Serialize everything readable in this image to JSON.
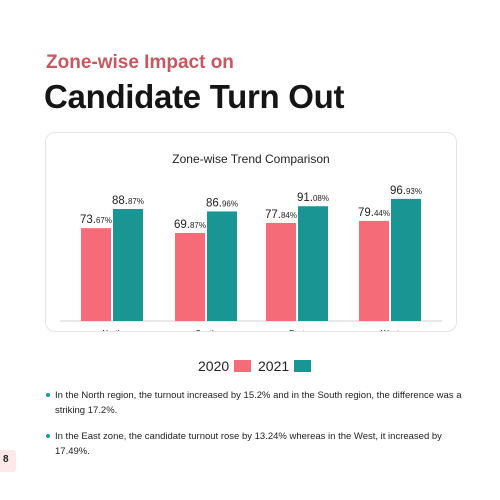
{
  "header": {
    "subtitle": "Zone-wise Impact on",
    "title": "Candidate Turn Out"
  },
  "colors": {
    "series_2020": "#f56b77",
    "series_2021": "#199693",
    "subtitle": "#c9575f",
    "page_badge": "#fde8ea"
  },
  "chart_data": {
    "type": "bar",
    "title": "Zone-wise Trend Comparison",
    "categories": [
      "North",
      "South",
      "East",
      "West"
    ],
    "series": [
      {
        "name": "2020",
        "values": [
          73.67,
          69.87,
          77.84,
          79.44
        ]
      },
      {
        "name": "2021",
        "values": [
          88.87,
          86.96,
          91.08,
          96.93
        ]
      }
    ],
    "labels": [
      {
        "big": [
          "73.",
          "69.",
          "77.",
          "79."
        ],
        "small": [
          "67%",
          "87%",
          "84%",
          "44%"
        ]
      },
      {
        "big": [
          "88.",
          "86.",
          "91.",
          "96."
        ],
        "small": [
          "87%",
          "96%",
          "08%",
          "93%"
        ]
      }
    ],
    "xlabel": "",
    "ylabel": "",
    "legend_position": "bottom",
    "grid": false
  },
  "legend": {
    "items": [
      {
        "label": "2020"
      },
      {
        "label": "2021"
      }
    ]
  },
  "bullets": [
    "In the North region, the turnout increased by 15.2% and in the South region, the difference was a striking 17.2%.",
    "In the East zone, the candidate turnout rose by 13.24% whereas in the West, it increased by 17.49%."
  ],
  "page": {
    "number": "8"
  }
}
